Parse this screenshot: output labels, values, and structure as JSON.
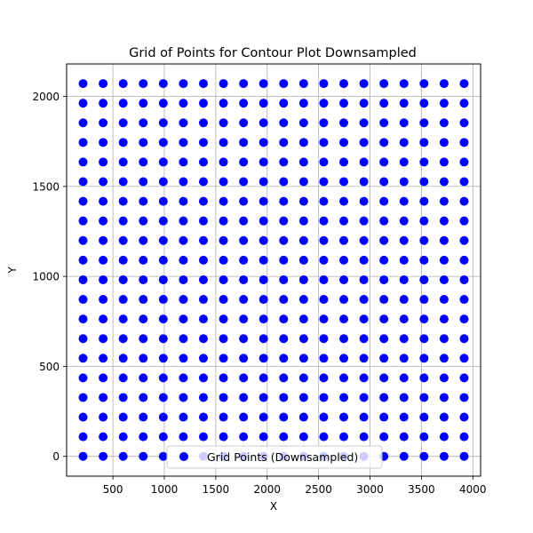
{
  "chart_data": {
    "type": "scatter",
    "title": "Grid of Points for Contour Plot Downsampled",
    "xlabel": "X",
    "ylabel": "Y",
    "xlim": [
      50,
      4075
    ],
    "ylim": [
      -110,
      2180
    ],
    "x_ticks": [
      500,
      1000,
      1500,
      2000,
      2500,
      3000,
      3500,
      4000
    ],
    "y_ticks": [
      0,
      500,
      1000,
      1500,
      2000
    ],
    "grid": true,
    "legend_position": "lower center",
    "series": [
      {
        "name": "Grid Points (Downsampled)",
        "color": "#0000ff",
        "marker": "circle",
        "x": [
          210,
          405,
          600,
          795,
          990,
          1185,
          1380,
          1575,
          1770,
          1965,
          2160,
          2355,
          2550,
          2745,
          2940,
          3135,
          3330,
          3525,
          3720,
          3915
        ],
        "y": [
          0,
          109,
          218,
          327,
          436,
          545,
          654,
          763,
          872,
          981,
          1090,
          1199,
          1308,
          1417,
          1526,
          1635,
          1744,
          1853,
          1962,
          2071
        ]
      }
    ]
  }
}
